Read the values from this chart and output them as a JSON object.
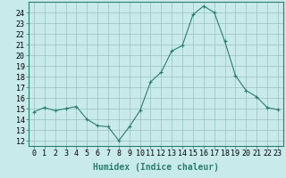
{
  "x": [
    0,
    1,
    2,
    3,
    4,
    5,
    6,
    7,
    8,
    9,
    10,
    11,
    12,
    13,
    14,
    15,
    16,
    17,
    18,
    19,
    20,
    21,
    22,
    23
  ],
  "y": [
    14.7,
    15.1,
    14.8,
    15.0,
    15.2,
    14.0,
    13.4,
    13.3,
    12.0,
    13.3,
    14.8,
    17.5,
    18.4,
    20.4,
    20.9,
    23.8,
    24.6,
    24.0,
    21.3,
    18.1,
    16.7,
    16.1,
    15.1,
    14.9
  ],
  "line_color": "#2d7d6e",
  "marker": "+",
  "marker_size": 3,
  "background_color": "#c8eaea",
  "grid_color": "#9abfbf",
  "xlabel": "Humidex (Indice chaleur)",
  "ylabel_ticks": [
    12,
    13,
    14,
    15,
    16,
    17,
    18,
    19,
    20,
    21,
    22,
    23,
    24
  ],
  "ylim": [
    11.5,
    25.0
  ],
  "xlim": [
    -0.5,
    23.5
  ],
  "label_fontsize": 7,
  "tick_fontsize": 6
}
